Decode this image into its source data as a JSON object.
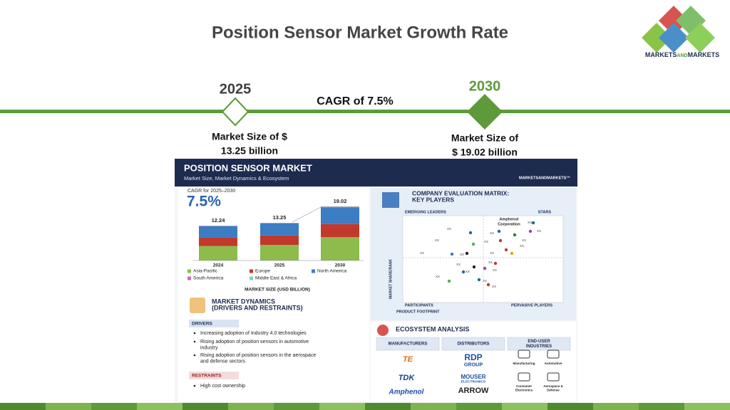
{
  "slide": {
    "title": "Position Sensor Market Growth Rate",
    "logo": [
      "MARKETS",
      "AND",
      "MARKETS"
    ]
  },
  "timeline": {
    "start": {
      "year": "2025",
      "size": [
        "Market Size of $",
        "13.25 billion"
      ]
    },
    "cagr": "CAGR of 7.5%",
    "end": {
      "year": "2030",
      "size": [
        "Market Size of",
        "$ 19.02 billion"
      ]
    }
  },
  "infographic": {
    "header": {
      "title": "POSITION SENSOR MARKET",
      "subtitle": "Market Size, Market Dynamics & Ecosystem",
      "brand": "MARKETSANDMARKETS™"
    },
    "chart": {
      "cagr_caption": "CAGR for 2025–2030",
      "cagr_value": "7.5%",
      "categories": [
        "2024",
        "2025",
        "2030"
      ],
      "totals": [
        12.24,
        13.25,
        19.02
      ],
      "series": [
        {
          "name": "Asia-Pacific",
          "color": "#8dbb4c",
          "values": [
            5.1,
            5.5,
            8.2
          ]
        },
        {
          "name": "Europe",
          "color": "#c0392b",
          "values": [
            3.0,
            3.3,
            4.6
          ]
        },
        {
          "name": "North America",
          "color": "#3c7dc4",
          "values": [
            3.9,
            4.2,
            5.9
          ]
        },
        {
          "name": "South America",
          "color": "#c46ea8",
          "values": [
            0.15,
            0.15,
            0.2
          ]
        },
        {
          "name": "Middle East & Africa",
          "color": "#86d0b8",
          "values": [
            0.09,
            0.1,
            0.12
          ]
        }
      ],
      "axis_title": "MARKET SIZE (USD BILLION)"
    },
    "dynamics": {
      "title": [
        "MARKET DYNAMICS",
        "(DRIVERS AND RESTRAINTS)"
      ],
      "drivers_heading": "DRIVERS",
      "drivers": [
        [
          "Increasing adoption of Industry 4.0 technologies"
        ],
        [
          "Rising adoption of position sensors in automotive",
          "industry"
        ],
        [
          "Rising adoption of position sensors in the aerospace",
          "and defense sectors"
        ]
      ],
      "restraints_heading": "RESTRAINTS",
      "restraints": [
        [
          "High cost ownership"
        ]
      ]
    },
    "matrix": {
      "title": [
        "COMPANY EVALUATION MATRIX:",
        "KEY PLAYERS"
      ],
      "quadrants": [
        "EMERGING LEADERS",
        "STARS",
        "PARTICIPANTS",
        "PERVASIVE PLAYERS"
      ],
      "y_axis": "MARKET SHARE/RANK",
      "x_axis": "PRODUCT FOOTPRINT",
      "highlighted": [
        "Amphenol",
        "Corporation"
      ],
      "point_label": "XX"
    },
    "ecosystem": {
      "title": "ECOSYSTEM ANALYSIS",
      "columns": [
        [
          "MANUFACTURERS"
        ],
        [
          "DISTRIBUTORS"
        ],
        [
          "END-USER",
          "INDUSTRIES"
        ]
      ],
      "manufacturers": [
        "TE",
        "TDK",
        "Amphenol"
      ],
      "distributors": [
        [
          "RDP",
          "GROUP"
        ],
        [
          "MOUSER",
          "ELECTRONICS"
        ],
        [
          "ARROW"
        ]
      ],
      "industries": [
        [
          "Manufacturing"
        ],
        [
          "Automotive"
        ],
        [
          "Consumer",
          "Electronics"
        ],
        [
          "Aerospace &",
          "Defense"
        ]
      ]
    }
  }
}
